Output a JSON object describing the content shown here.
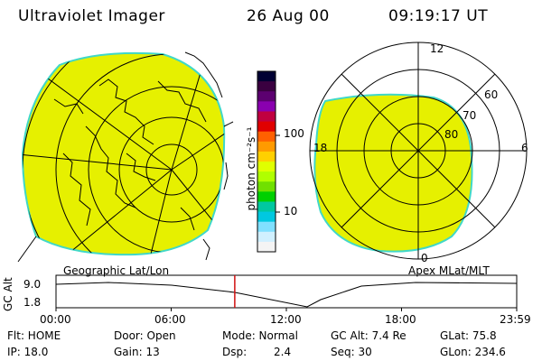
{
  "header": {
    "instrument": "Ultraviolet Imager",
    "date": "26 Aug 00",
    "time": "09:19:17 UT"
  },
  "colorbar": {
    "unit_label": "photon cm⁻²s⁻¹",
    "tick_100": "100",
    "tick_10": "10",
    "colors": [
      "#000033",
      "#3a0040",
      "#5c0070",
      "#8a00b0",
      "#c00040",
      "#e00000",
      "#ff6000",
      "#ff9a00",
      "#ffd000",
      "#e0ff00",
      "#b0ff00",
      "#70e000",
      "#00d000",
      "#00c8a0",
      "#00c8e0",
      "#80e0ff",
      "#d0f0ff",
      "#f4f4f4"
    ]
  },
  "left_map": {
    "caption": "Geographic Lat/Lon",
    "fill_color": "#e6f000",
    "edge_color": "#40d8c8"
  },
  "right_map": {
    "caption": "Apex MLat/MLT",
    "mlt_12": "12",
    "mlt_18": "18",
    "mlt_6": "6",
    "mlt_0": "0",
    "lat_60": "60",
    "lat_70": "70",
    "lat_80": "80"
  },
  "altitude_panel": {
    "ylabel": "GC Alt",
    "y_top": "9.0",
    "y_bottom": "1.8",
    "x_ticks": [
      "00:00",
      "06:00",
      "12:00",
      "18:00",
      "23:59"
    ],
    "current_time_fraction": 0.388
  },
  "info": {
    "flt": "Flt: HOME",
    "ip": "IP: 18.0",
    "door": "Door: Open",
    "gain": "Gain: 13",
    "mode": "Mode: Normal",
    "dsp_label": "Dsp:",
    "dsp_value": "2.4",
    "gc_alt": "GC Alt: 7.4 Re",
    "seq": "Seq: 30",
    "glat": "GLat: 75.8",
    "glon": "GLon: 234.6"
  }
}
